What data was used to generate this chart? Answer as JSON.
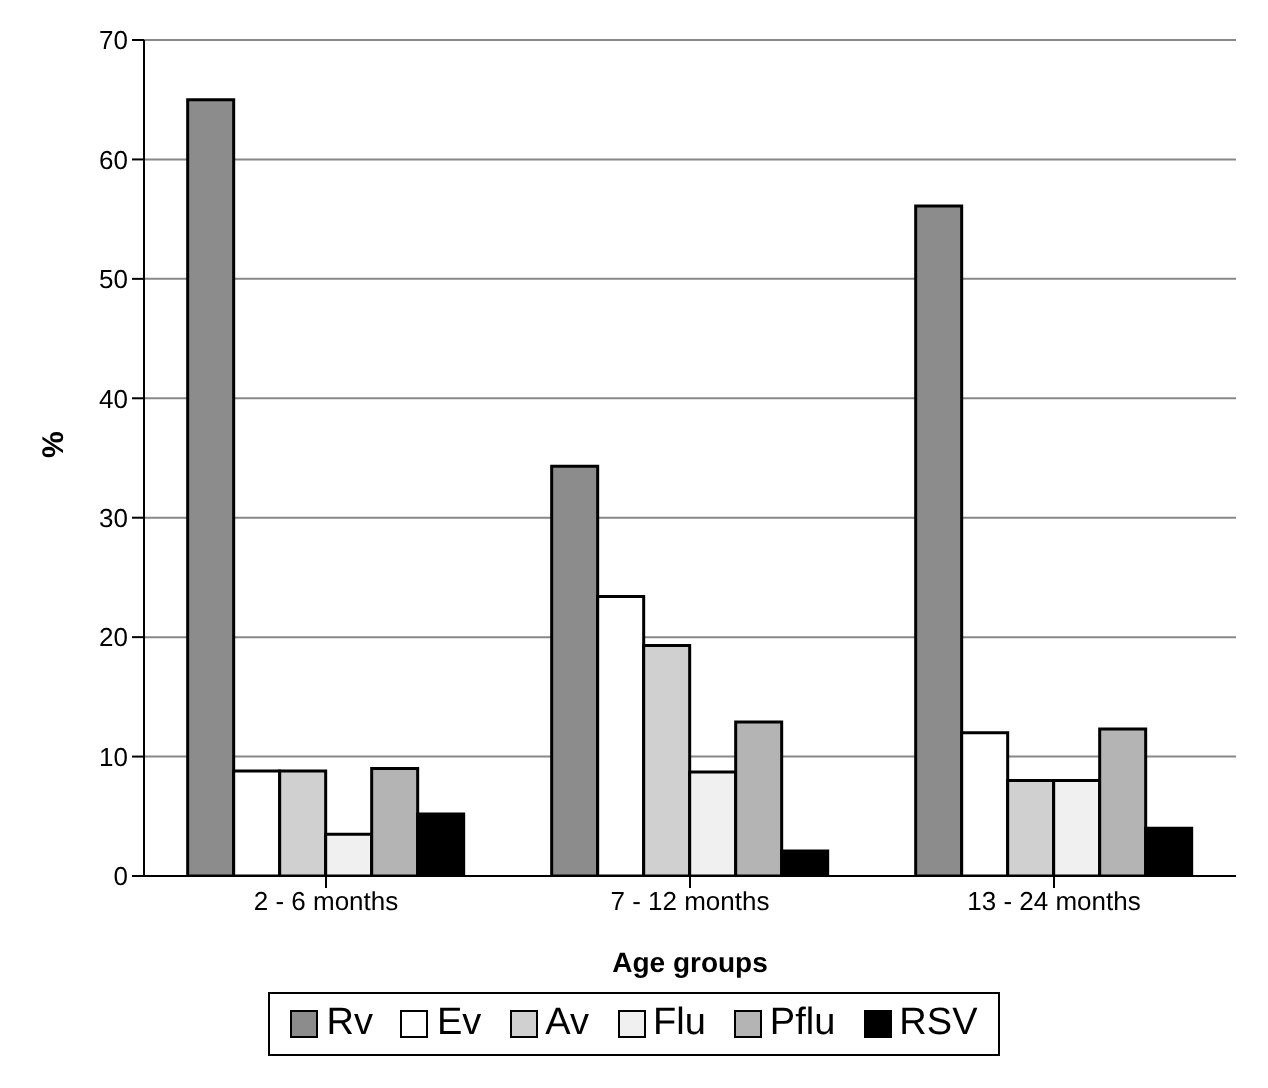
{
  "chart_data": {
    "type": "bar",
    "xlabel": "Age groups",
    "ylabel": "%",
    "categories": [
      "2 - 6 months",
      "7 - 12 months",
      "13 - 24 months"
    ],
    "series": [
      {
        "name": "Rv",
        "color": "#8c8c8c",
        "values": [
          65,
          34.3,
          56.1
        ]
      },
      {
        "name": "Ev",
        "color": "#ffffff",
        "values": [
          8.8,
          23.4,
          12
        ]
      },
      {
        "name": "Av",
        "color": "#d0d0d0",
        "values": [
          8.8,
          19.3,
          8
        ]
      },
      {
        "name": "Flu",
        "color": "#f0f0f0",
        "values": [
          3.5,
          8.7,
          8
        ]
      },
      {
        "name": "Pflu",
        "color": "#b4b4b4",
        "values": [
          9,
          12.9,
          12.3
        ]
      },
      {
        "name": "RSV",
        "color": "#000000",
        "values": [
          5.2,
          2.1,
          4
        ]
      }
    ],
    "ylim": [
      0,
      70
    ],
    "yticks": [
      0,
      10,
      20,
      30,
      40,
      50,
      60,
      70
    ],
    "grid": "y",
    "legend": "bottom"
  }
}
